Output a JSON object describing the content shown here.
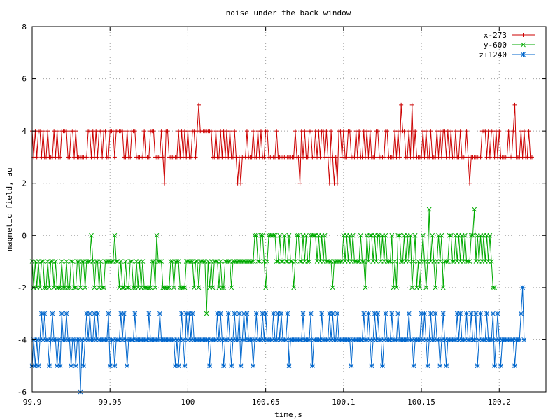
{
  "chart_data": {
    "type": "line",
    "title": "noise under the back window",
    "xlabel": "time,s",
    "ylabel": "magnetic field, au",
    "xlim": [
      99.9,
      100.23
    ],
    "ylim": [
      -6,
      8
    ],
    "x_ticks": [
      {
        "value": 99.9,
        "label": "99.9"
      },
      {
        "value": 99.95,
        "label": "99.95"
      },
      {
        "value": 100.0,
        "label": "100"
      },
      {
        "value": 100.05,
        "label": "100.05"
      },
      {
        "value": 100.1,
        "label": "100.1"
      },
      {
        "value": 100.15,
        "label": "100.15"
      },
      {
        "value": 100.2,
        "label": "100.2"
      }
    ],
    "y_ticks": [
      {
        "value": -6,
        "label": "-6"
      },
      {
        "value": -4,
        "label": "-4"
      },
      {
        "value": -2,
        "label": "-2"
      },
      {
        "value": 0,
        "label": "0"
      },
      {
        "value": 2,
        "label": "2"
      },
      {
        "value": 4,
        "label": "4"
      },
      {
        "value": 6,
        "label": "6"
      },
      {
        "value": 8,
        "label": "8"
      }
    ],
    "grid": true,
    "legend_position": "top-right",
    "x_start": 99.9,
    "x_step": 0.001,
    "series": [
      {
        "name": "x-273",
        "color": "#cc0000",
        "marker": "plus",
        "values": [
          4,
          3,
          4,
          3,
          4,
          4,
          3,
          4,
          3,
          3,
          4,
          3,
          3,
          3,
          4,
          3,
          4,
          3,
          3,
          4,
          4,
          4,
          4,
          3,
          3,
          4,
          4,
          3,
          4,
          3,
          3,
          3,
          3,
          3,
          3,
          3,
          4,
          4,
          3,
          4,
          3,
          4,
          3,
          4,
          4,
          3,
          4,
          4,
          3,
          3,
          4,
          4,
          4,
          3,
          4,
          4,
          4,
          4,
          4,
          3,
          3,
          4,
          3,
          3,
          4,
          4,
          4,
          3,
          3,
          3,
          3,
          3,
          4,
          3,
          3,
          3,
          4,
          4,
          4,
          3,
          3,
          3,
          3,
          4,
          3,
          2,
          4,
          4,
          3,
          3,
          3,
          3,
          3,
          3,
          4,
          3,
          4,
          3,
          4,
          3,
          4,
          3,
          3,
          4,
          4,
          3,
          4,
          5,
          4,
          4,
          4,
          4,
          4,
          4,
          4,
          4,
          3,
          3,
          4,
          3,
          3,
          4,
          3,
          4,
          3,
          4,
          3,
          4,
          3,
          3,
          4,
          3,
          2,
          3,
          2,
          3,
          3,
          3,
          4,
          3,
          3,
          3,
          4,
          3,
          3,
          4,
          3,
          4,
          3,
          3,
          4,
          4,
          3,
          3,
          3,
          3,
          3,
          4,
          3,
          3,
          3,
          3,
          3,
          3,
          3,
          3,
          3,
          3,
          3,
          4,
          3,
          3,
          2,
          4,
          3,
          4,
          3,
          3,
          4,
          4,
          3,
          3,
          4,
          3,
          4,
          3,
          4,
          4,
          3,
          4,
          3,
          2,
          4,
          3,
          2,
          3,
          2,
          4,
          4,
          3,
          4,
          3,
          3,
          4,
          4,
          3,
          3,
          3,
          4,
          3,
          4,
          3,
          3,
          4,
          3,
          4,
          3,
          4,
          3,
          3,
          3,
          4,
          4,
          3,
          3,
          3,
          3,
          4,
          4,
          3,
          3,
          3,
          3,
          4,
          3,
          4,
          3,
          5,
          4,
          4,
          3,
          3,
          4,
          3,
          5,
          3,
          4,
          3,
          3,
          3,
          3,
          4,
          3,
          4,
          3,
          3,
          4,
          3,
          3,
          3,
          4,
          3,
          4,
          3,
          4,
          4,
          3,
          4,
          3,
          4,
          3,
          3,
          4,
          3,
          3,
          4,
          3,
          3,
          3,
          4,
          3,
          2,
          3,
          3,
          3,
          3,
          3,
          3,
          3,
          4,
          4,
          4,
          3,
          4,
          3,
          4,
          4,
          3,
          4,
          3,
          4,
          3,
          3,
          3,
          3,
          3,
          4,
          3,
          3,
          4,
          5,
          3,
          3,
          3,
          4,
          3,
          4,
          3,
          3,
          4,
          3,
          3
        ]
      },
      {
        "name": "y-600",
        "color": "#00aa00",
        "marker": "cross",
        "values": [
          -1,
          -2,
          -1,
          -2,
          -1,
          -2,
          -1,
          -1,
          -2,
          -2,
          -1,
          -2,
          -1,
          -1,
          -2,
          -1,
          -2,
          -2,
          -2,
          -1,
          -2,
          -2,
          -1,
          -2,
          -2,
          -1,
          -1,
          -2,
          -2,
          -1,
          -1,
          -2,
          -1,
          -1,
          -2,
          -1,
          -1,
          -1,
          0,
          -1,
          -2,
          -1,
          -1,
          -2,
          -1,
          -2,
          -2,
          -1,
          -1,
          -1,
          -1,
          -1,
          -1,
          0,
          -1,
          -1,
          -2,
          -1,
          -2,
          -2,
          -1,
          -2,
          -2,
          -1,
          -1,
          -2,
          -2,
          -1,
          -2,
          -1,
          -2,
          -1,
          -2,
          -2,
          -2,
          -2,
          -2,
          -1,
          -1,
          -2,
          0,
          -1,
          -1,
          -1,
          -2,
          -2,
          -2,
          -2,
          -2,
          -1,
          -1,
          -2,
          -1,
          -1,
          -1,
          -2,
          -2,
          -2,
          -2,
          -1,
          -1,
          -1,
          -1,
          -1,
          -2,
          -1,
          -1,
          -2,
          -1,
          -1,
          -1,
          -1,
          -3,
          -1,
          -2,
          -1,
          -2,
          -1,
          -1,
          -1,
          -2,
          -1,
          -2,
          -2,
          -1,
          -1,
          -1,
          -1,
          -2,
          -1,
          -1,
          -1,
          -1,
          -1,
          -1,
          -1,
          -1,
          -1,
          -1,
          -1,
          -1,
          -1,
          -1,
          0,
          0,
          -1,
          -1,
          0,
          0,
          -1,
          -2,
          -1,
          0,
          0,
          0,
          0,
          0,
          -1,
          -1,
          0,
          -1,
          -1,
          0,
          -1,
          -1,
          0,
          -1,
          -1,
          -2,
          -1,
          0,
          0,
          -1,
          -1,
          0,
          -1,
          0,
          -1,
          -1,
          0,
          0,
          0,
          0,
          -1,
          0,
          -1,
          0,
          -1,
          0,
          -1,
          -1,
          -1,
          -1,
          -2,
          -1,
          -1,
          -1,
          -1,
          -1,
          -1,
          0,
          -1,
          0,
          -1,
          0,
          -1,
          0,
          -1,
          -1,
          -1,
          -1,
          0,
          -1,
          -1,
          -2,
          0,
          -1,
          0,
          0,
          -1,
          0,
          -1,
          0,
          0,
          -1,
          0,
          -1,
          0,
          -1,
          -1,
          -1,
          0,
          -2,
          -1,
          -2,
          0,
          0,
          -1,
          -1,
          0,
          -1,
          0,
          -1,
          0,
          -2,
          -1,
          0,
          -2,
          -1,
          -2,
          -1,
          0,
          -1,
          -2,
          -1,
          1,
          -1,
          0,
          -1,
          -2,
          -1,
          0,
          -1,
          0,
          -2,
          -1,
          -1,
          -1,
          0,
          0,
          -1,
          -1,
          0,
          -1,
          0,
          -1,
          0,
          -1,
          0,
          -1,
          -1,
          -1,
          0,
          0,
          1,
          -1,
          0,
          -1,
          0,
          -1,
          0,
          -1,
          0,
          -1,
          0,
          -1,
          -2,
          -2
        ]
      },
      {
        "name": "z+1240",
        "color": "#0066cc",
        "marker": "star",
        "values": [
          -5,
          -4,
          -5,
          -4,
          -5,
          -4,
          -3,
          -4,
          -3,
          -4,
          -4,
          -5,
          -4,
          -3,
          -4,
          -4,
          -5,
          -4,
          -5,
          -3,
          -4,
          -4,
          -3,
          -4,
          -4,
          -5,
          -4,
          -4,
          -5,
          -4,
          -4,
          -6,
          -4,
          -5,
          -4,
          -3,
          -4,
          -3,
          -4,
          -4,
          -3,
          -4,
          -3,
          -4,
          -4,
          -4,
          -4,
          -4,
          -4,
          -3,
          -5,
          -4,
          -4,
          -5,
          -4,
          -4,
          -4,
          -3,
          -4,
          -3,
          -4,
          -5,
          -4,
          -4,
          -4,
          -4,
          -3,
          -4,
          -4,
          -4,
          -4,
          -4,
          -4,
          -4,
          -4,
          -3,
          -4,
          -4,
          -4,
          -4,
          -4,
          -4,
          -3,
          -4,
          -4,
          -4,
          -4,
          -4,
          -4,
          -4,
          -4,
          -4,
          -5,
          -4,
          -5,
          -4,
          -3,
          -4,
          -5,
          -3,
          -4,
          -3,
          -4,
          -3,
          -4,
          -4,
          -4,
          -4,
          -4,
          -4,
          -4,
          -4,
          -4,
          -4,
          -5,
          -4,
          -4,
          -4,
          -4,
          -3,
          -4,
          -3,
          -4,
          -5,
          -4,
          -4,
          -3,
          -4,
          -5,
          -4,
          -3,
          -4,
          -4,
          -3,
          -5,
          -4,
          -3,
          -4,
          -3,
          -4,
          -4,
          -4,
          -5,
          -4,
          -3,
          -4,
          -4,
          -4,
          -3,
          -4,
          -3,
          -4,
          -4,
          -4,
          -4,
          -3,
          -4,
          -4,
          -3,
          -4,
          -3,
          -4,
          -4,
          -4,
          -3,
          -5,
          -4,
          -4,
          -4,
          -4,
          -4,
          -4,
          -4,
          -4,
          -3,
          -4,
          -4,
          -4,
          -4,
          -3,
          -5,
          -4,
          -4,
          -4,
          -4,
          -4,
          -3,
          -4,
          -4,
          -4,
          -4,
          -3,
          -4,
          -3,
          -4,
          -4,
          -3,
          -4,
          -4,
          -4,
          -4,
          -4,
          -4,
          -4,
          -4,
          -5,
          -4,
          -4,
          -4,
          -4,
          -4,
          -4,
          -4,
          -3,
          -4,
          -4,
          -3,
          -4,
          -5,
          -4,
          -3,
          -4,
          -3,
          -4,
          -4,
          -5,
          -4,
          -3,
          -4,
          -4,
          -4,
          -3,
          -4,
          -4,
          -4,
          -3,
          -4,
          -4,
          -4,
          -4,
          -4,
          -4,
          -3,
          -4,
          -4,
          -5,
          -4,
          -4,
          -4,
          -4,
          -3,
          -4,
          -3,
          -4,
          -5,
          -4,
          -3,
          -4,
          -4,
          -3,
          -4,
          -4,
          -5,
          -4,
          -3,
          -4,
          -5,
          -4,
          -4,
          -4,
          -4,
          -4,
          -4,
          -3,
          -4,
          -3,
          -4,
          -4,
          -4,
          -3,
          -4,
          -4,
          -3,
          -4,
          -4,
          -3,
          -5,
          -4,
          -3,
          -4,
          -4,
          -4,
          -3,
          -4,
          -4,
          -4,
          -3,
          -5,
          -4,
          -3,
          -4,
          -5,
          -4,
          -4,
          -4,
          -4,
          -4,
          -4,
          -4,
          -4,
          -5,
          -4,
          -4,
          -4,
          -3,
          -2,
          -4
        ]
      }
    ]
  }
}
